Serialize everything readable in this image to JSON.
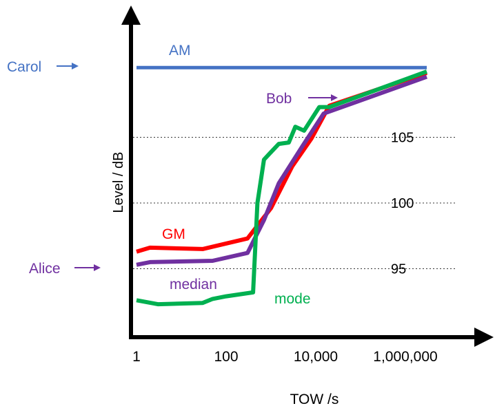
{
  "chart_data": {
    "type": "line",
    "title": "",
    "xlabel": "TOW /s",
    "ylabel": "Level / dB",
    "x_scale": "log",
    "x_tick_labels": [
      "1",
      "100",
      "10,000",
      "1,000,000"
    ],
    "x_tick_values": [
      1,
      100,
      10000,
      1000000
    ],
    "y_gridlines": [
      {
        "label": "105",
        "value": 105
      },
      {
        "label": "100",
        "value": 100
      },
      {
        "label": "95",
        "value": 95
      }
    ],
    "ylim": [
      90,
      115
    ],
    "series": [
      {
        "name": "AM",
        "color": "#4472C4",
        "x": [
          1,
          3000000
        ],
        "y": [
          110.3,
          110.3
        ]
      },
      {
        "name": "GM",
        "color": "#ff0000",
        "x": [
          1,
          2,
          30,
          300,
          1000,
          3000,
          8000,
          20000,
          3000000
        ],
        "y": [
          96.3,
          96.6,
          96.5,
          97.3,
          99.6,
          102.8,
          104.9,
          107.4,
          109.9
        ]
      },
      {
        "name": "median",
        "color": "#7030A0",
        "x": [
          1,
          2,
          50,
          300,
          700,
          1500,
          5000,
          15000,
          3000000
        ],
        "y": [
          95.3,
          95.5,
          95.6,
          96.2,
          98.7,
          101.5,
          104.3,
          106.8,
          109.6
        ]
      },
      {
        "name": "mode",
        "color": "#00B050",
        "x": [
          1,
          3,
          30,
          50,
          100,
          400,
          500,
          700,
          900,
          1500,
          2500,
          3500,
          5500,
          12000,
          20000,
          3000000
        ],
        "y": [
          92.6,
          92.3,
          92.4,
          92.7,
          92.9,
          93.2,
          100,
          103.3,
          103.7,
          104.5,
          104.6,
          105.8,
          105.5,
          107.3,
          107.3,
          110.0
        ]
      }
    ],
    "annotations": [
      {
        "text": "Carol",
        "color": "#4472C4",
        "arrow": true
      },
      {
        "text": "Bob",
        "color": "#7030A0",
        "arrow": true
      },
      {
        "text": "Alice",
        "color": "#7030A0",
        "arrow": true
      },
      {
        "text": "AM",
        "color": "#4472C4"
      },
      {
        "text": "GM",
        "color": "#ff0000"
      },
      {
        "text": "median",
        "color": "#7030A0"
      },
      {
        "text": "mode",
        "color": "#00B050"
      }
    ],
    "grid": "dotted horizontal lines at 95, 100, 105"
  }
}
